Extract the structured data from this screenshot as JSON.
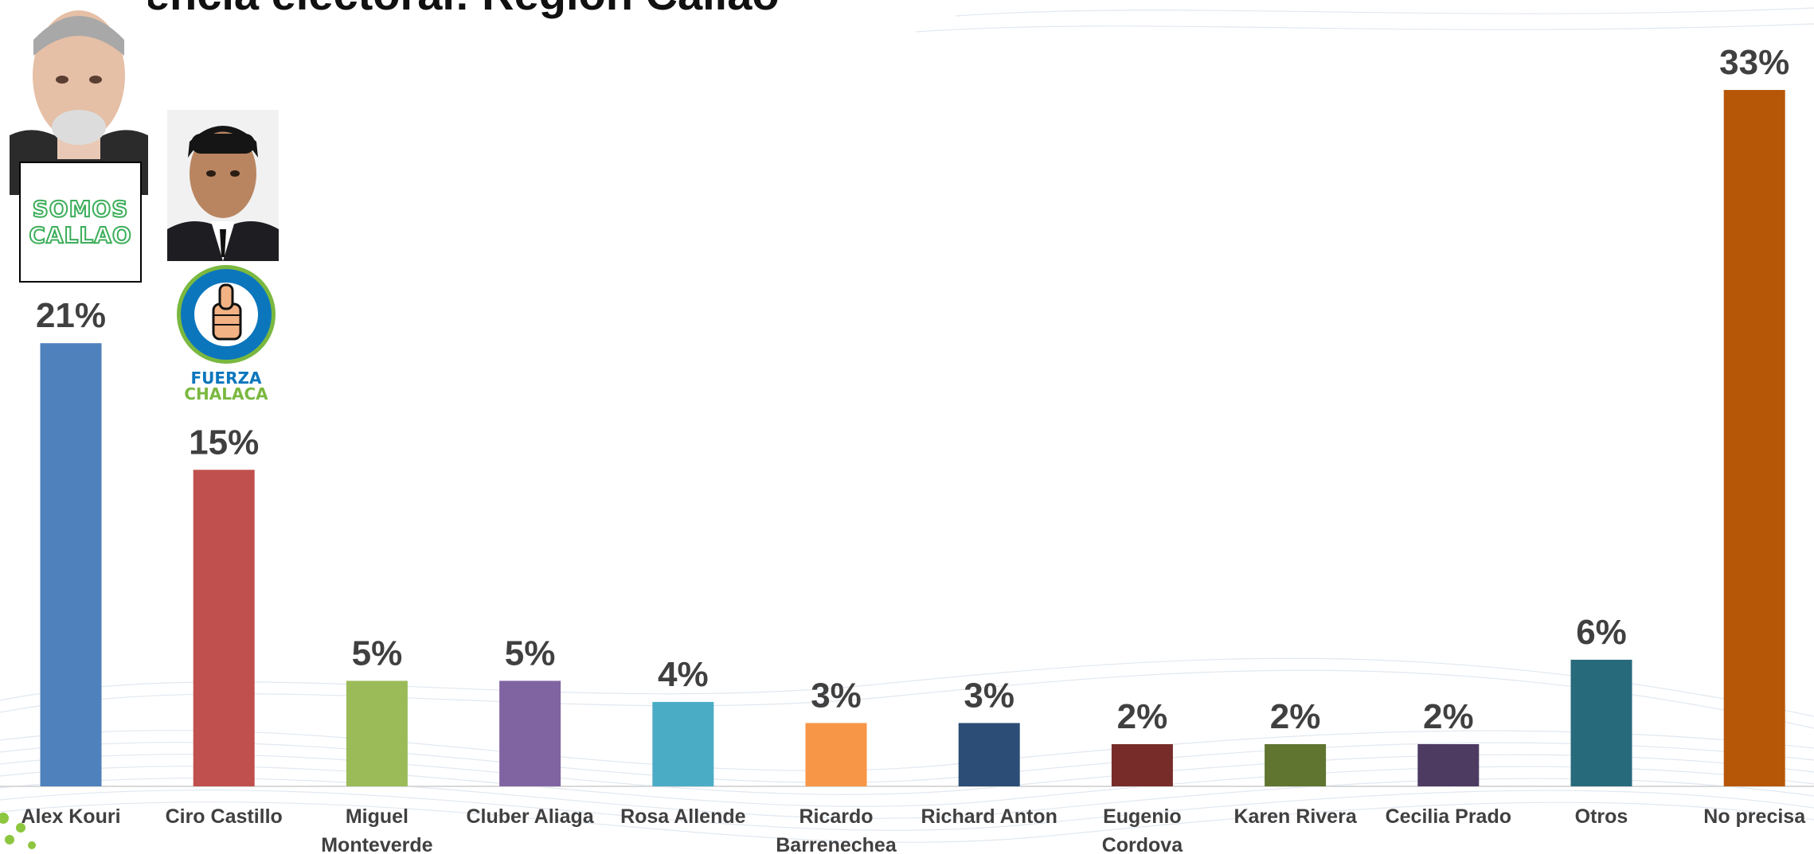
{
  "title": "Preferencia electoral: Región Callao",
  "colors": {
    "label": "#404040",
    "baseline": "#d9d9d9"
  },
  "logos": {
    "somos_callao": [
      "SOMOS",
      "CALLAO"
    ],
    "fuerza_chalaca": [
      "FUERZA",
      "CHALACA"
    ]
  },
  "chart_data": {
    "type": "bar",
    "categories": [
      "Alex Kouri",
      "Ciro Castillo",
      "Miguel Monteverde",
      "Cluber Aliaga",
      "Rosa Allende",
      "Ricardo Barrenechea",
      "Richard Anton",
      "Eugenio Cordova",
      "Karen Rivera",
      "Cecilia Prado",
      "Otros",
      "No precisa"
    ],
    "values": [
      21,
      15,
      5,
      5,
      4,
      3,
      3,
      2,
      2,
      2,
      6,
      33
    ],
    "value_labels": [
      "21%",
      "15%",
      "5%",
      "5%",
      "4%",
      "3%",
      "3%",
      "2%",
      "2%",
      "2%",
      "6%",
      "33%"
    ],
    "bar_colors": [
      "#4f81bd",
      "#c0504d",
      "#9bbb59",
      "#8064a2",
      "#4bacc6",
      "#f79646",
      "#2c4d75",
      "#772c2a",
      "#5f7530",
      "#4d3b62",
      "#276a7c",
      "#b65708"
    ],
    "ylim": [
      0,
      35
    ],
    "grid": false,
    "legend": "none"
  }
}
